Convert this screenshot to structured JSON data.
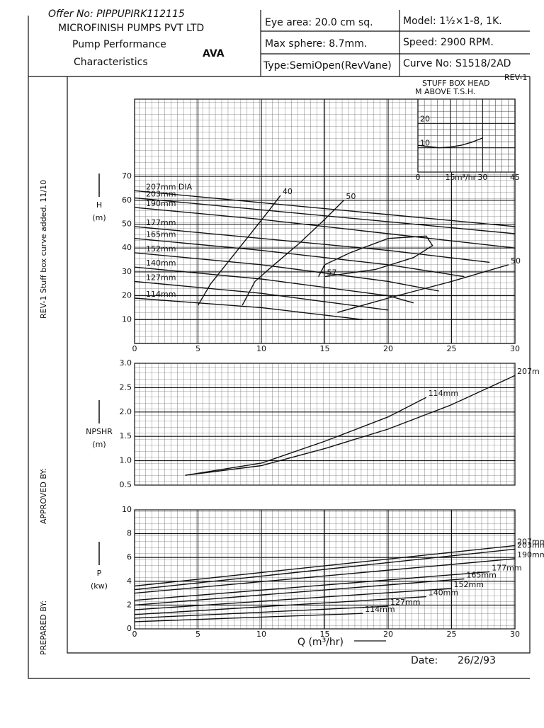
{
  "header": {
    "offer_no": "Offer No: PIPPUPIRK112115",
    "company": "MICROFINISH PUMPS PVT LTD",
    "subtitle_1": "Pump Performance",
    "subtitle_2": "Characteristics",
    "logo": "AVA",
    "eye_area": "Eye area: 20.0 cm sq.",
    "max_sphere": "Max sphere: 8.7mm.",
    "type": "Type:SemiOpen(RevVane)",
    "model": "Model: 1½×1-8,  1K.",
    "speed": "Speed: 2900 RPM.",
    "curve_no": "Curve No: S1518/2AD",
    "revision": "REV-1"
  },
  "side": {
    "rev_note": "REV-1 Stuff box curve added.  11/10",
    "approved": "APPROVED BY:",
    "prepared": "PREPARED BY:"
  },
  "footer": {
    "x_axis_label": "Q (m³/hr)",
    "date_label": "Date:",
    "date": "26/2/93"
  },
  "chart_data": [
    {
      "type": "line",
      "y_label": "H",
      "y_unit": "(m)",
      "xlim": [
        0,
        30
      ],
      "ylim": [
        0,
        100
      ],
      "xticks": [
        0,
        5,
        10,
        15,
        20,
        25,
        30
      ],
      "yticks": [
        10,
        20,
        30,
        40,
        50,
        60,
        70
      ],
      "series": [
        {
          "name": "207mm DIA",
          "color": "#111",
          "label_at": "start",
          "x": [
            0,
            10,
            20,
            30
          ],
          "values": [
            64,
            59,
            54,
            49
          ]
        },
        {
          "name": "203mm",
          "color": "#111",
          "label_at": "start",
          "x": [
            0,
            10,
            20,
            30
          ],
          "values": [
            61,
            56,
            51,
            46
          ]
        },
        {
          "name": "190mm",
          "color": "#111",
          "label_at": "start",
          "x": [
            0,
            10,
            20,
            30
          ],
          "values": [
            57,
            52,
            46,
            40
          ]
        },
        {
          "name": "177mm",
          "color": "#111",
          "label_at": "start",
          "x": [
            0,
            10,
            20,
            28
          ],
          "values": [
            49,
            44,
            39,
            34
          ]
        },
        {
          "name": "165mm",
          "color": "#111",
          "label_at": "start",
          "x": [
            0,
            10,
            20,
            26
          ],
          "values": [
            44,
            39,
            33,
            28
          ]
        },
        {
          "name": "152mm",
          "color": "#111",
          "label_at": "start",
          "x": [
            0,
            10,
            20,
            24
          ],
          "values": [
            38,
            33,
            26,
            22
          ]
        },
        {
          "name": "140mm",
          "color": "#111",
          "label_at": "start",
          "x": [
            0,
            10,
            20,
            22
          ],
          "values": [
            32,
            27,
            20,
            17
          ]
        },
        {
          "name": "127mm",
          "color": "#111",
          "label_at": "start",
          "x": [
            0,
            10,
            20
          ],
          "values": [
            26,
            21,
            14
          ]
        },
        {
          "name": "114mm",
          "color": "#111",
          "label_at": "start",
          "x": [
            0,
            10,
            18
          ],
          "values": [
            19,
            15,
            10
          ]
        },
        {
          "name": "40",
          "color": "#111",
          "label_at": "end",
          "x": [
            5,
            6,
            7.5,
            9,
            10.5,
            11.5
          ],
          "values": [
            16,
            25,
            35,
            45,
            55,
            62
          ]
        },
        {
          "name": "50",
          "color": "#111",
          "label_at": "end",
          "x": [
            8.5,
            9.5,
            11,
            13,
            15,
            16.5
          ],
          "values": [
            16,
            26,
            33,
            42,
            52,
            60
          ]
        },
        {
          "name": "57",
          "color": "#111",
          "label_at": "end",
          "x": [
            14.5,
            15,
            17,
            20,
            23,
            23.5,
            22,
            19,
            15
          ],
          "values": [
            28,
            33,
            38,
            44,
            45,
            41,
            36,
            31,
            28
          ]
        },
        {
          "name": "50",
          "color": "#111",
          "label_at": "end",
          "x": [
            16,
            20,
            25,
            29.5
          ],
          "values": [
            13,
            19,
            26,
            33
          ]
        }
      ]
    },
    {
      "type": "line",
      "y_label": "NPSHR",
      "y_unit": "(m)",
      "xlim": [
        0,
        30
      ],
      "ylim": [
        0.5,
        3
      ],
      "yticks": [
        {
          "value": 0.5,
          "label": "0.5"
        },
        {
          "value": 1,
          "label": "1.0"
        },
        1.5,
        {
          "value": 2,
          "label": "2.0"
        },
        2.5,
        {
          "value": 3,
          "label": "3.0"
        }
      ],
      "series": [
        {
          "name": "114mm",
          "color": "#111",
          "label_at": "end",
          "x": [
            4,
            10,
            15,
            20,
            23
          ],
          "values": [
            0.7,
            0.95,
            1.4,
            1.9,
            2.3
          ]
        },
        {
          "name": "207m",
          "color": "#111",
          "label_at": "end",
          "x": [
            4,
            10,
            15,
            20,
            25,
            30
          ],
          "values": [
            0.7,
            0.9,
            1.25,
            1.65,
            2.15,
            2.75
          ]
        }
      ]
    },
    {
      "type": "line",
      "y_label": "P",
      "y_unit": "(kw)",
      "xlim": [
        0,
        30
      ],
      "ylim": [
        0,
        10
      ],
      "xticks": [
        0,
        5,
        10,
        15,
        20,
        25,
        30
      ],
      "yticks": [
        0,
        2,
        4,
        6,
        8,
        10
      ],
      "series": [
        {
          "name": "207mm",
          "color": "#111",
          "label_at": "end",
          "x": [
            0,
            30
          ],
          "values": [
            3.6,
            7.0
          ]
        },
        {
          "name": "203mm",
          "color": "#111",
          "label_at": "end",
          "x": [
            0,
            30
          ],
          "values": [
            3.3,
            6.7
          ]
        },
        {
          "name": "190mm",
          "color": "#111",
          "label_at": "end",
          "x": [
            0,
            30
          ],
          "values": [
            3.0,
            5.9
          ]
        },
        {
          "name": "177mm",
          "color": "#111",
          "label_at": "end",
          "x": [
            0,
            28
          ],
          "values": [
            2.4,
            4.8
          ]
        },
        {
          "name": "165mm",
          "color": "#111",
          "label_at": "end",
          "x": [
            0,
            26
          ],
          "values": [
            2.0,
            4.2
          ]
        },
        {
          "name": "152mm",
          "color": "#111",
          "label_at": "end",
          "x": [
            0,
            25
          ],
          "values": [
            1.6,
            3.4
          ]
        },
        {
          "name": "140mm",
          "color": "#111",
          "label_at": "end",
          "x": [
            0,
            23
          ],
          "values": [
            1.2,
            2.7
          ]
        },
        {
          "name": "127mm",
          "color": "#111",
          "label_at": "end",
          "x": [
            0,
            20
          ],
          "values": [
            0.9,
            1.9
          ]
        },
        {
          "name": "114mm",
          "color": "#111",
          "label_at": "end",
          "x": [
            0,
            18
          ],
          "values": [
            0.6,
            1.3
          ]
        }
      ]
    },
    {
      "type": "line",
      "title_1": "STUFF BOX HEAD",
      "title_2": "M  ABOVE T.S.H.",
      "x_label": "m³/hr",
      "xlim": [
        0,
        45
      ],
      "ylim": [
        0,
        30
      ],
      "xticks": [
        0,
        15,
        30,
        45
      ],
      "yticks": [
        10,
        20
      ],
      "series": [
        {
          "name": "",
          "color": "#111",
          "x": [
            0,
            5,
            10,
            15,
            20,
            25,
            30
          ],
          "values": [
            11,
            10.5,
            10,
            10.3,
            11,
            12.3,
            14
          ]
        }
      ]
    }
  ]
}
